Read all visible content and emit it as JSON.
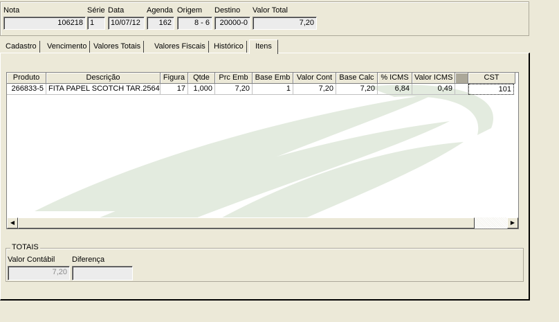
{
  "header": {
    "labels": {
      "nota": "Nota",
      "serie": "Série",
      "data": "Data",
      "agenda": "Agenda",
      "origem": "Origem",
      "destino": "Destino",
      "valor_total": "Valor Total"
    },
    "values": {
      "nota": "106218",
      "serie": "1",
      "data": "10/07/12",
      "agenda": "162",
      "origem": "8 - 6",
      "destino": "20000-0",
      "valor_total": "7,20"
    }
  },
  "tabs": [
    {
      "label": "Cadastro",
      "active": false
    },
    {
      "label": "Vencimento",
      "active": false
    },
    {
      "label": "Valores Totais",
      "active": false
    },
    {
      "label": "Valores Fiscais",
      "active": false
    },
    {
      "label": "Histórico",
      "active": false
    },
    {
      "label": "Itens",
      "active": true
    }
  ],
  "grid": {
    "columns": [
      "Produto",
      "Descrição",
      "Figura",
      "Qtde",
      "Prc Emb",
      "Base Emb",
      "Valor Cont",
      "Base Calc",
      "% ICMS",
      "Valor ICMS",
      "",
      "CST"
    ],
    "rows": [
      [
        "266833-5",
        "FITA PAPEL SCOTCH TAR.2564",
        "17",
        "1,000",
        "7,20",
        "1",
        "7,20",
        "7,20",
        "6,84",
        "0,49",
        "",
        "101"
      ]
    ]
  },
  "totais": {
    "title": "TOTAIS",
    "valor_contabil_label": "Valor Contábil",
    "diferenca_label": "Diferença",
    "valor_contabil": "7,20",
    "diferenca": ""
  },
  "colors": {
    "background": "#ECE9D8",
    "watermark": "#E3EBDF"
  }
}
